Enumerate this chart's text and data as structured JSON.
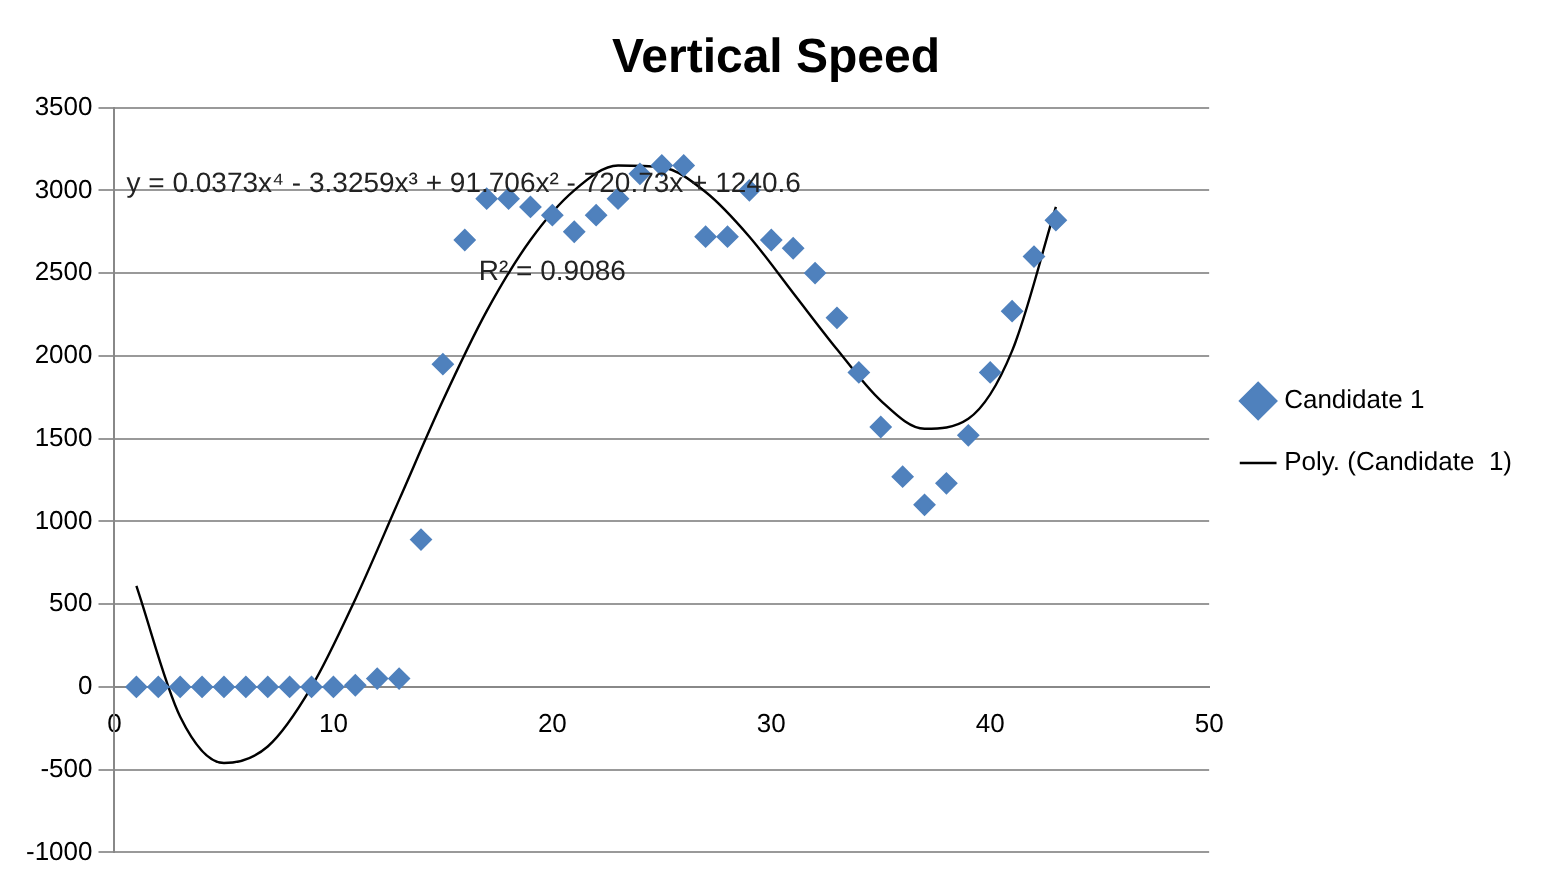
{
  "chart_data": {
    "type": "scatter",
    "title": "Vertical Speed",
    "legend": "right",
    "grid": "y",
    "marker": "diamond",
    "xlim": [
      0,
      50
    ],
    "xticks": [
      0,
      10,
      20,
      30,
      40,
      50
    ],
    "ylim": [
      -1000,
      3500
    ],
    "yticks": [
      -1000,
      -500,
      0,
      500,
      1000,
      1500,
      2000,
      2500,
      3000,
      3500
    ],
    "annotations": [
      "y = 0.0373x⁴ - 3.3259x³ + 91.706x² - 720.73x + 1240.6",
      "R² = 0.9086"
    ],
    "series": [
      {
        "name": "Candidate 1",
        "type": "scatter",
        "color": "#4f81bd",
        "x": [
          1,
          2,
          3,
          4,
          5,
          6,
          7,
          8,
          9,
          10,
          11,
          12,
          13,
          14,
          15,
          16,
          17,
          18,
          19,
          20,
          21,
          22,
          23,
          24,
          25,
          26,
          27,
          28,
          29,
          30,
          31,
          32,
          33,
          34,
          35,
          36,
          37,
          38,
          39,
          40,
          41,
          42,
          43
        ],
        "values": [
          0,
          0,
          0,
          0,
          0,
          0,
          0,
          0,
          0,
          0,
          10,
          50,
          50,
          890,
          1950,
          2700,
          2950,
          2950,
          2900,
          2850,
          2750,
          2850,
          2950,
          3100,
          3150,
          3150,
          2720,
          2720,
          3000,
          2700,
          2650,
          2500,
          2230,
          1900,
          1570,
          1270,
          1100,
          1230,
          1520,
          1900,
          2270,
          2600,
          2820
        ]
      },
      {
        "name": "Poly. (Candidate  1)",
        "type": "line",
        "color": "#000000",
        "marker": "none",
        "x": [
          1,
          3,
          5,
          7,
          9,
          11,
          13,
          15,
          17,
          19,
          21,
          23,
          25,
          27,
          29,
          31,
          33,
          35,
          37,
          39,
          41,
          43
        ],
        "values": [
          610,
          -180,
          -460,
          -360,
          0,
          530,
          1130,
          1730,
          2270,
          2700,
          3000,
          3150,
          3140,
          2990,
          2720,
          2380,
          2040,
          1730,
          1560,
          1620,
          2030,
          2900
        ]
      }
    ]
  }
}
